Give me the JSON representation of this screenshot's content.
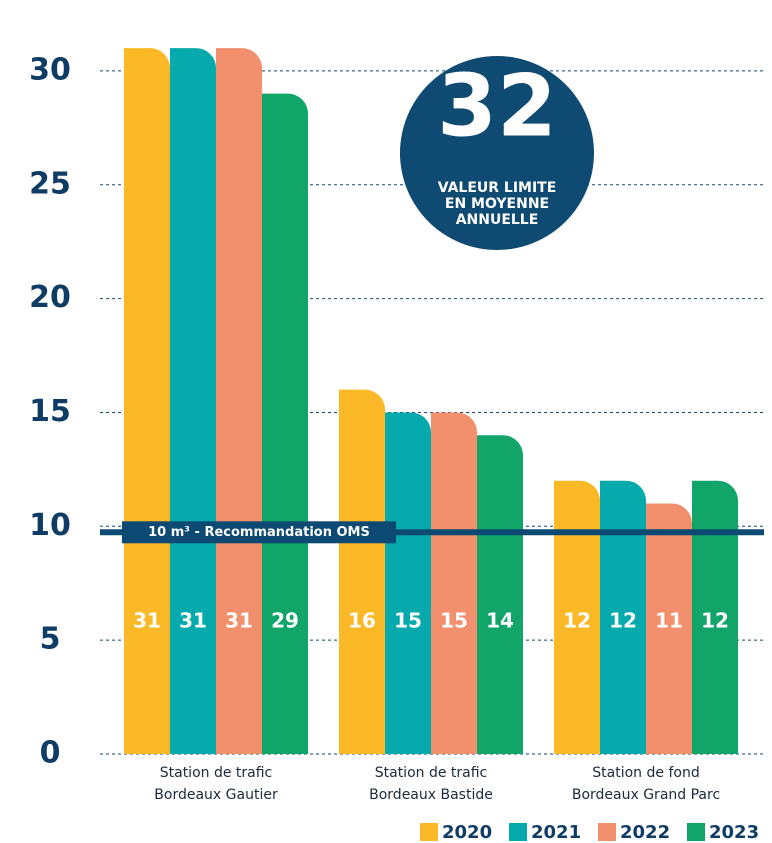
{
  "chart_data": {
    "type": "bar",
    "categories": [
      [
        "Station de trafic",
        "Bordeaux Gautier"
      ],
      [
        "Station de trafic",
        "Bordeaux Bastide"
      ],
      [
        "Station de fond",
        "Bordeaux Grand Parc"
      ]
    ],
    "series": [
      {
        "name": "2020",
        "color": "#fbb827",
        "values": [
          31,
          16,
          12
        ]
      },
      {
        "name": "2021",
        "color": "#07aaac",
        "values": [
          31,
          15,
          12
        ]
      },
      {
        "name": "2022",
        "color": "#f28f6d",
        "values": [
          31,
          15,
          11
        ]
      },
      {
        "name": "2023",
        "color": "#12a56a",
        "values": [
          29,
          14,
          12
        ]
      }
    ],
    "ylim": [
      0,
      33
    ],
    "yticks": [
      0,
      5,
      10,
      15,
      20,
      25,
      30
    ],
    "grid": true,
    "reference_line": {
      "value": 10,
      "label": "10 m³ - Recommandation OMS"
    },
    "annotation": {
      "value": 32,
      "text": [
        "VALEUR LIMITE",
        "EN MOYENNE",
        "ANNUELLE"
      ]
    },
    "legend": "bottom-right"
  }
}
